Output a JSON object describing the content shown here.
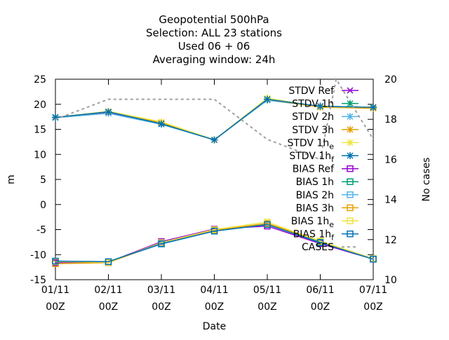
{
  "chart_data": {
    "type": "line",
    "title_lines": [
      "Geopotential 500hPa",
      "Selection: ALL      23 stations",
      "Used  06 + 06",
      "Averaging window: 24h"
    ],
    "xlabel": "Date",
    "ylabel": "m",
    "y2label": "No cases",
    "categories": [
      "01/11 00Z",
      "02/11 00Z",
      "03/11 00Z",
      "04/11 00Z",
      "05/11 00Z",
      "06/11 00Z",
      "07/11 00Z"
    ],
    "x_tick_labels": [
      [
        "01/11",
        "00Z"
      ],
      [
        "02/11",
        "00Z"
      ],
      [
        "03/11",
        "00Z"
      ],
      [
        "04/11",
        "00Z"
      ],
      [
        "05/11",
        "00Z"
      ],
      [
        "06/11",
        "00Z"
      ],
      [
        "07/11",
        "00Z"
      ]
    ],
    "ylim": [
      -15,
      25
    ],
    "y_ticks": [
      "-15",
      "-10",
      "-5",
      "0",
      "5",
      "10",
      "15",
      "20",
      "25"
    ],
    "y2lim": [
      10,
      20
    ],
    "y2_ticks": [
      "10",
      "12",
      "14",
      "16",
      "18",
      "20"
    ],
    "grid": false,
    "legend_position": "top-right",
    "series": [
      {
        "name": "STDV Ref",
        "color": "#9400d3",
        "marker": "x",
        "axis": "y1",
        "values": [
          17.4,
          18.4,
          16.1,
          12.9,
          20.9,
          19.6,
          19.4
        ]
      },
      {
        "name": "STDV 1h",
        "color": "#009e73",
        "marker": "star",
        "axis": "y1",
        "values": [
          17.4,
          18.5,
          16.2,
          12.9,
          21.0,
          19.6,
          19.4
        ]
      },
      {
        "name": "STDV 2h",
        "color": "#56b4e9",
        "marker": "star",
        "axis": "y1",
        "values": [
          17.3,
          18.2,
          16.0,
          12.9,
          20.8,
          19.5,
          19.3
        ]
      },
      {
        "name": "STDV 3h",
        "color": "#e69f00",
        "marker": "star",
        "axis": "y1",
        "values": [
          17.4,
          18.5,
          16.3,
          12.9,
          21.0,
          19.4,
          19.2
        ]
      },
      {
        "name": "STDV 1h",
        "name_sub": "e",
        "color": "#f0e442",
        "marker": "star",
        "axis": "y1",
        "values": [
          17.4,
          18.6,
          16.5,
          12.9,
          21.2,
          19.5,
          19.4
        ]
      },
      {
        "name": "STDV 1h",
        "name_sub": "f",
        "color": "#0072b2",
        "marker": "star",
        "axis": "y1",
        "values": [
          17.4,
          18.5,
          16.1,
          12.9,
          21.0,
          19.6,
          19.4
        ]
      },
      {
        "name": "BIAS Ref",
        "color": "#9400d3",
        "marker": "square",
        "axis": "y1",
        "values": [
          -11.6,
          -11.5,
          -7.4,
          -4.9,
          -4.3,
          -7.8,
          -10.9
        ]
      },
      {
        "name": "BIAS 1h",
        "color": "#009e73",
        "marker": "square",
        "axis": "y1",
        "values": [
          -11.4,
          -11.5,
          -7.8,
          -5.2,
          -3.9,
          -7.5,
          -10.8
        ]
      },
      {
        "name": "BIAS 2h",
        "color": "#56b4e9",
        "marker": "square",
        "axis": "y1",
        "values": [
          -11.3,
          -11.4,
          -7.9,
          -5.3,
          -4.0,
          -7.6,
          -10.9
        ]
      },
      {
        "name": "BIAS 3h",
        "color": "#e69f00",
        "marker": "square",
        "axis": "y1",
        "values": [
          -11.8,
          -11.6,
          -7.7,
          -5.1,
          -3.8,
          -7.3,
          -10.9
        ]
      },
      {
        "name": "BIAS 1h",
        "name_sub": "e",
        "color": "#f0e442",
        "marker": "square",
        "axis": "y1",
        "values": [
          -11.4,
          -11.5,
          -7.6,
          -5.0,
          -3.5,
          -7.3,
          -10.8
        ]
      },
      {
        "name": "BIAS 1h",
        "name_sub": "f",
        "color": "#0072b2",
        "marker": "square",
        "axis": "y1",
        "values": [
          -11.3,
          -11.4,
          -7.8,
          -5.3,
          -4.0,
          -7.6,
          -10.9
        ]
      },
      {
        "name": "CASES",
        "color": "#a0a0a0",
        "marker": "none",
        "dash": true,
        "axis": "y2",
        "x": [
          0,
          1,
          2,
          3,
          4,
          5,
          5.3,
          6
        ],
        "values": [
          18.0,
          19.0,
          19.0,
          19.0,
          17.0,
          16.0,
          20.0,
          17.0
        ]
      }
    ]
  }
}
